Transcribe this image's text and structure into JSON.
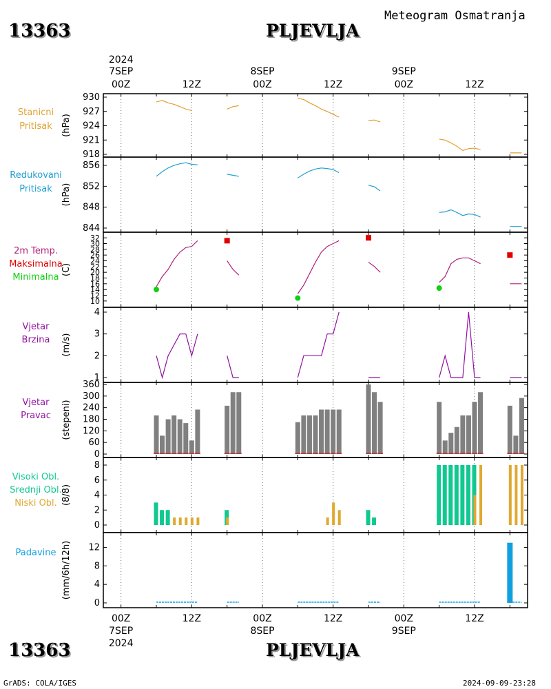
{
  "header": {
    "station_id": "13363",
    "station_name": "PLJEVLJA",
    "chart_title": "Meteogram Osmatranja"
  },
  "footer": {
    "credit": "GrADS: COLA/IGES",
    "timestamp": "2024-09-09-23:28"
  },
  "colors": {
    "pressure": "#e0a030",
    "reduced": "#20a0d0",
    "temp": "#b0207a",
    "tmax": "#e00000",
    "tmin": "#10d010",
    "wind": "#9010a0",
    "bars": "#808080",
    "cloud_high": "#10c890",
    "cloud_mid": "#10c890",
    "cloud_low": "#e0a830",
    "precip": "#10a0e0"
  },
  "time_axis": {
    "top_year": "2024",
    "top_ticks": [
      {
        "h": 0,
        "l1": "7SEP",
        "l2": "00Z"
      },
      {
        "h": 12,
        "l1": "",
        "l2": "12Z"
      },
      {
        "h": 24,
        "l1": "8SEP",
        "l2": "00Z"
      },
      {
        "h": 36,
        "l1": "",
        "l2": "12Z"
      },
      {
        "h": 48,
        "l1": "9SEP",
        "l2": "00Z"
      },
      {
        "h": 60,
        "l1": "",
        "l2": "12Z"
      }
    ],
    "bottom_ticks": [
      {
        "h": 0,
        "l1": "00Z",
        "l2": "7SEP",
        "l3": "2024"
      },
      {
        "h": 12,
        "l1": "12Z",
        "l2": "",
        "l3": ""
      },
      {
        "h": 24,
        "l1": "00Z",
        "l2": "8SEP",
        "l3": ""
      },
      {
        "h": 36,
        "l1": "12Z",
        "l2": "",
        "l3": ""
      },
      {
        "h": 48,
        "l1": "00Z",
        "l2": "9SEP",
        "l3": ""
      },
      {
        "h": 60,
        "l1": "12Z",
        "l2": "",
        "l3": ""
      }
    ]
  },
  "chart_data": [
    {
      "type": "line",
      "id": "pressure",
      "labels": [
        "Stanicni",
        "Pritisak"
      ],
      "unit": "(hPa)",
      "ylim": [
        918,
        930
      ],
      "yticks": [
        918,
        921,
        924,
        927,
        930
      ],
      "segments": [
        [
          [
            6,
            929
          ],
          [
            7,
            929.3
          ],
          [
            8,
            928.8
          ],
          [
            9,
            928.5
          ],
          [
            10,
            928
          ],
          [
            11,
            927.5
          ],
          [
            12,
            927.2
          ]
        ],
        [
          [
            18,
            927.5
          ],
          [
            19,
            928
          ],
          [
            20,
            928.2
          ]
        ],
        [
          [
            30,
            929.8
          ],
          [
            31,
            929.5
          ],
          [
            32,
            928.8
          ],
          [
            33,
            928.2
          ],
          [
            34,
            927.5
          ],
          [
            35,
            927
          ],
          [
            36,
            926.4
          ],
          [
            37,
            925.8
          ]
        ],
        [
          [
            42,
            925.1
          ],
          [
            43,
            925.2
          ],
          [
            44,
            924.8
          ]
        ],
        [
          [
            54,
            921.2
          ],
          [
            55,
            921
          ],
          [
            56,
            920.4
          ],
          [
            57,
            919.7
          ],
          [
            58,
            918.8
          ],
          [
            59,
            919.2
          ],
          [
            60,
            919.3
          ],
          [
            61,
            919
          ]
        ],
        [
          [
            66,
            918.3
          ],
          [
            67,
            918.3
          ],
          [
            68,
            918.3
          ]
        ]
      ]
    },
    {
      "type": "line",
      "id": "reduced_pressure",
      "labels": [
        "Redukovani",
        "Pritisak"
      ],
      "unit": "(hPa)",
      "ylim": [
        844,
        856
      ],
      "yticks": [
        844,
        848,
        852,
        856
      ],
      "segments": [
        [
          [
            6,
            853.9
          ],
          [
            7,
            854.8
          ],
          [
            8,
            855.5
          ],
          [
            9,
            856
          ],
          [
            10,
            856.3
          ],
          [
            11,
            856.5
          ],
          [
            12,
            856.2
          ],
          [
            13,
            856.1
          ]
        ],
        [
          [
            18,
            854.3
          ],
          [
            19,
            854.1
          ],
          [
            20,
            853.9
          ]
        ],
        [
          [
            30,
            853.6
          ],
          [
            31,
            854.3
          ],
          [
            32,
            854.9
          ],
          [
            33,
            855.3
          ],
          [
            34,
            855.5
          ],
          [
            35,
            855.4
          ],
          [
            36,
            855.2
          ],
          [
            37,
            854.6
          ]
        ],
        [
          [
            42,
            852.2
          ],
          [
            43,
            851.9
          ],
          [
            44,
            851.1
          ]
        ],
        [
          [
            54,
            847
          ],
          [
            55,
            847.1
          ],
          [
            56,
            847.5
          ],
          [
            57,
            847
          ],
          [
            58,
            846.4
          ],
          [
            59,
            846.7
          ],
          [
            60,
            846.6
          ],
          [
            61,
            846.1
          ]
        ],
        [
          [
            66,
            844.3
          ],
          [
            67,
            844.3
          ],
          [
            68,
            844.3
          ]
        ]
      ]
    },
    {
      "type": "line",
      "id": "temperature",
      "labels": [
        "2m Temp.",
        "Maksimalna",
        "Minimalna"
      ],
      "unit": "(C)",
      "ylim": [
        9,
        33
      ],
      "yticks": [
        10,
        12,
        14,
        16,
        18,
        20,
        22,
        24,
        26,
        28,
        30,
        32
      ],
      "segments": [
        [
          [
            6,
            15
          ],
          [
            7,
            18.5
          ],
          [
            8,
            21
          ],
          [
            9,
            24.5
          ],
          [
            10,
            27
          ],
          [
            11,
            28.6
          ],
          [
            12,
            29
          ],
          [
            13,
            31
          ]
        ],
        [
          [
            18,
            24
          ],
          [
            19,
            21
          ],
          [
            20,
            19
          ]
        ],
        [
          [
            30,
            12.5
          ],
          [
            31,
            15.5
          ],
          [
            32,
            19.5
          ],
          [
            33,
            23.5
          ],
          [
            34,
            27
          ],
          [
            35,
            29
          ],
          [
            36,
            30
          ],
          [
            37,
            31
          ]
        ],
        [
          [
            42,
            23.5
          ],
          [
            43,
            22
          ],
          [
            44,
            20
          ]
        ],
        [
          [
            54,
            16.5
          ],
          [
            55,
            18.5
          ],
          [
            56,
            23
          ],
          [
            57,
            24.5
          ],
          [
            58,
            25
          ],
          [
            59,
            25
          ],
          [
            60,
            24
          ],
          [
            61,
            23
          ]
        ],
        [
          [
            66,
            16
          ],
          [
            67,
            16
          ],
          [
            68,
            16
          ]
        ]
      ],
      "tmax": [
        [
          18,
          31
        ],
        [
          42,
          32
        ],
        [
          66,
          26
        ]
      ],
      "tmin": [
        [
          6,
          14
        ],
        [
          30,
          11
        ],
        [
          54,
          14.5
        ]
      ]
    },
    {
      "type": "line",
      "id": "wind_speed",
      "labels": [
        "Vjetar",
        "Brzina"
      ],
      "unit": "(m/s)",
      "ylim": [
        1,
        4
      ],
      "yticks": [
        1,
        2,
        3,
        4
      ],
      "segments": [
        [
          [
            6,
            2
          ],
          [
            7,
            1
          ],
          [
            8,
            2
          ],
          [
            9,
            2.5
          ],
          [
            10,
            3
          ],
          [
            11,
            3
          ],
          [
            12,
            2
          ],
          [
            13,
            3
          ]
        ],
        [
          [
            18,
            2
          ],
          [
            19,
            1
          ],
          [
            20,
            1
          ]
        ],
        [
          [
            30,
            1
          ],
          [
            31,
            2
          ],
          [
            32,
            2
          ],
          [
            33,
            2
          ],
          [
            34,
            2
          ],
          [
            35,
            3
          ],
          [
            36,
            3
          ],
          [
            37,
            4
          ]
        ],
        [
          [
            42,
            1
          ],
          [
            43,
            1
          ],
          [
            44,
            1
          ]
        ],
        [
          [
            54,
            1
          ],
          [
            55,
            2
          ],
          [
            56,
            1
          ],
          [
            57,
            1
          ],
          [
            58,
            1
          ],
          [
            59,
            4
          ],
          [
            60,
            1
          ],
          [
            61,
            1
          ]
        ],
        [
          [
            66,
            1
          ],
          [
            67,
            1
          ],
          [
            68,
            1
          ]
        ]
      ]
    },
    {
      "type": "bar",
      "id": "wind_direction",
      "labels": [
        "Vjetar",
        "Pravac"
      ],
      "unit": "(stepeni)",
      "ylim": [
        0,
        360
      ],
      "yticks": [
        0,
        60,
        120,
        180,
        240,
        300,
        360
      ],
      "bars": [
        [
          6,
          200
        ],
        [
          7,
          95
        ],
        [
          8,
          180
        ],
        [
          9,
          200
        ],
        [
          10,
          180
        ],
        [
          11,
          160
        ],
        [
          12,
          70
        ],
        [
          13,
          230
        ],
        [
          18,
          250
        ],
        [
          19,
          320
        ],
        [
          20,
          320
        ],
        [
          30,
          165
        ],
        [
          31,
          200
        ],
        [
          32,
          200
        ],
        [
          33,
          200
        ],
        [
          34,
          230
        ],
        [
          35,
          230
        ],
        [
          36,
          230
        ],
        [
          37,
          230
        ],
        [
          42,
          360
        ],
        [
          43,
          320
        ],
        [
          44,
          270
        ],
        [
          54,
          270
        ],
        [
          55,
          70
        ],
        [
          56,
          110
        ],
        [
          57,
          140
        ],
        [
          58,
          200
        ],
        [
          59,
          200
        ],
        [
          60,
          270
        ],
        [
          61,
          320
        ],
        [
          66,
          250
        ],
        [
          67,
          95
        ],
        [
          68,
          290
        ]
      ]
    },
    {
      "type": "bar",
      "id": "clouds",
      "labels": [
        "Visoki Obl.",
        "Srednji Obl.",
        "Niski Obl."
      ],
      "unit": "(8/8)",
      "ylim": [
        0,
        8
      ],
      "yticks": [
        0,
        2,
        4,
        6,
        8
      ],
      "high": [
        [
          6,
          3
        ],
        [
          7,
          2
        ],
        [
          8,
          2
        ],
        [
          18,
          2
        ],
        [
          42,
          2
        ],
        [
          43,
          1
        ],
        [
          54,
          8
        ],
        [
          55,
          8
        ],
        [
          56,
          8
        ],
        [
          57,
          8
        ],
        [
          58,
          8
        ],
        [
          59,
          8
        ],
        [
          60,
          8
        ]
      ],
      "low": [
        [
          9,
          1
        ],
        [
          10,
          1
        ],
        [
          11,
          1
        ],
        [
          12,
          1
        ],
        [
          13,
          1
        ],
        [
          18,
          1
        ],
        [
          35,
          1
        ],
        [
          36,
          3
        ],
        [
          37,
          2
        ],
        [
          60,
          4
        ],
        [
          61,
          8
        ],
        [
          66,
          8
        ],
        [
          67,
          8
        ],
        [
          68,
          8
        ]
      ]
    },
    {
      "type": "bar",
      "id": "precipitation",
      "labels": [
        "Padavine"
      ],
      "unit": "(mm/6h/12h)",
      "ylim": [
        0,
        14
      ],
      "yticks": [
        0,
        4,
        8,
        12
      ],
      "bars": [
        [
          66,
          13
        ]
      ],
      "traces": [
        [
          6,
          13
        ],
        [
          18,
          20
        ],
        [
          30,
          37
        ],
        [
          42,
          44
        ],
        [
          54,
          61
        ],
        [
          66,
          68
        ]
      ]
    }
  ]
}
